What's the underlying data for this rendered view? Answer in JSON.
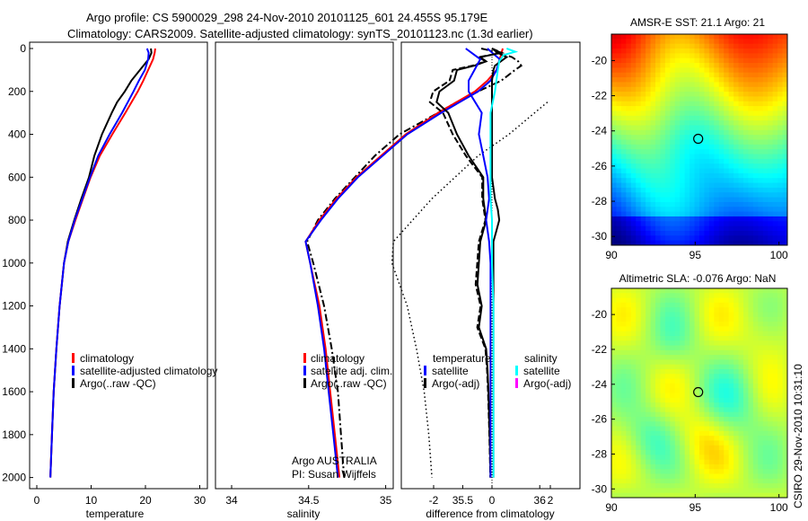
{
  "header": {
    "line1": "Argo profile: CS 5900029_298 24-Nov-2010 20101125_601 24.455S 95.179E",
    "line2": "Climatology: CARS2009. Satellite-adjusted climatology: synTS_20101123.nc (1.3d earlier)"
  },
  "side_stamp": "CSIRO 29-Nov-2010 10:31:10",
  "colors": {
    "climatology": "#ff0000",
    "satellite": "#0000ff",
    "argo": "#000000",
    "sal_satellite": "#00ffff",
    "sal_argo": "#ff00ff"
  },
  "chart_data": [
    {
      "id": "temperature",
      "type": "line",
      "xlabel": "temperature",
      "ylabel": "",
      "xlim": [
        -3,
        32
      ],
      "ylim": [
        2050,
        0
      ],
      "x_ticks": [
        0,
        10,
        20,
        30
      ],
      "y_ticks": [
        0,
        200,
        400,
        600,
        800,
        1000,
        1200,
        1400,
        1600,
        1800,
        2000
      ],
      "legend": [
        "climatology",
        "satellite-adjusted climatology",
        "Argo(..raw -QC)"
      ],
      "series": [
        {
          "name": "climatology",
          "depth": [
            0,
            20,
            50,
            100,
            150,
            200,
            300,
            400,
            500,
            600,
            700,
            800,
            900,
            1000,
            1200,
            1400,
            1600,
            1800,
            2000
          ],
          "values": [
            21.8,
            21.7,
            21.4,
            20.5,
            19.6,
            18.6,
            16.3,
            13.9,
            11.6,
            9.9,
            8.5,
            7.1,
            5.8,
            5.0,
            4.2,
            3.6,
            3.1,
            2.8,
            2.5
          ]
        },
        {
          "name": "satellite-adjusted climatology",
          "depth": [
            0,
            20,
            50,
            100,
            150,
            200,
            300,
            400,
            500,
            600,
            700,
            800,
            900,
            1000,
            1200,
            1400,
            1600,
            1800,
            2000
          ],
          "values": [
            20.3,
            20.6,
            20.5,
            19.9,
            18.8,
            17.8,
            15.7,
            13.4,
            11.3,
            9.8,
            8.4,
            7.0,
            5.8,
            5.0,
            4.2,
            3.6,
            3.1,
            2.8,
            2.5
          ]
        },
        {
          "name": "Argo(..raw -QC)",
          "depth": [
            0,
            20,
            50,
            100,
            150,
            200,
            250,
            300,
            400,
            500,
            600,
            700,
            800,
            900,
            1000,
            1200,
            1400,
            1600,
            1800,
            2000
          ],
          "values": [
            21.0,
            21.1,
            20.6,
            19.0,
            17.4,
            16.2,
            14.8,
            13.8,
            12.0,
            10.6,
            9.6,
            8.2,
            6.9,
            5.7,
            5.0,
            4.2,
            3.6,
            3.1,
            2.8,
            2.5
          ]
        }
      ]
    },
    {
      "id": "salinity",
      "type": "line",
      "xlabel": "salinity",
      "ylabel": "",
      "xlim": [
        33.85,
        36.05
      ],
      "ylim": [
        2050,
        0
      ],
      "x_ticks": [
        34,
        34.5,
        35,
        35.5,
        36
      ],
      "legend": [
        "climatology",
        "satellite adj. clim.",
        "Argo(..raw -QC)"
      ],
      "annotation": [
        "Argo AUSTRALIA",
        "PI: Susan Wijffels"
      ],
      "series": [
        {
          "name": "climatology",
          "depth": [
            0,
            25,
            50,
            100,
            150,
            200,
            300,
            400,
            500,
            600,
            700,
            800,
            900,
            1000,
            1200,
            1400,
            1600,
            1800,
            2000
          ],
          "values": [
            35.76,
            35.75,
            35.74,
            35.72,
            35.66,
            35.58,
            35.34,
            35.13,
            34.97,
            34.81,
            34.68,
            34.57,
            34.48,
            34.51,
            34.57,
            34.61,
            34.64,
            34.67,
            34.7
          ]
        },
        {
          "name": "satellite adj. clim.",
          "depth": [
            0,
            25,
            50,
            100,
            150,
            200,
            300,
            400,
            500,
            600,
            700,
            800,
            900,
            1000,
            1200,
            1400,
            1600,
            1800,
            2000
          ],
          "values": [
            35.66,
            35.7,
            35.74,
            35.72,
            35.68,
            35.6,
            35.36,
            35.14,
            34.98,
            34.82,
            34.69,
            34.58,
            34.48,
            34.51,
            34.56,
            34.6,
            34.63,
            34.66,
            34.69
          ]
        },
        {
          "name": "Argo(..raw -QC)",
          "depth": [
            0,
            20,
            40,
            60,
            80,
            100,
            150,
            200,
            250,
            300,
            400,
            500,
            600,
            700,
            800,
            900,
            1000,
            1200,
            1400,
            1600,
            1800,
            2000
          ],
          "values": [
            35.62,
            35.74,
            35.82,
            35.86,
            35.88,
            35.84,
            35.75,
            35.6,
            35.46,
            35.34,
            35.09,
            34.93,
            34.8,
            34.67,
            34.56,
            34.49,
            34.53,
            34.6,
            34.65,
            34.69,
            34.71,
            34.73
          ]
        },
        {
          "name": "",
          "depth": [
            250,
            400,
            500,
            700,
            900,
            1000,
            1200,
            1400,
            1600,
            1800,
            2000
          ],
          "values": [
            36.05,
            35.8,
            35.6,
            35.3,
            35.05,
            35.04,
            35.14,
            35.2,
            35.25,
            35.28,
            35.3
          ]
        }
      ]
    },
    {
      "id": "difference",
      "type": "line",
      "xlabel": "difference from climatology",
      "ylabel": "",
      "xlim": [
        -3.1,
        3.2
      ],
      "ylim": [
        2050,
        0
      ],
      "x_ticks": [
        -2,
        0,
        2
      ],
      "legend_temperature": [
        "temperature",
        "satellite",
        "Argo(-adj)"
      ],
      "legend_salinity": [
        "salinity",
        "satellite",
        "Argo(-adj)"
      ],
      "series": [
        {
          "name": "temperature satellite",
          "depth": [
            0,
            20,
            50,
            100,
            150,
            200,
            300,
            400,
            500,
            600,
            700,
            800,
            900,
            1000,
            1200,
            1400,
            1600,
            1800,
            2000
          ],
          "values": [
            -0.9,
            -0.7,
            -0.4,
            -0.6,
            -0.8,
            -0.8,
            -0.35,
            -0.45,
            -0.3,
            -0.15,
            -0.1,
            -0.2,
            -0.1,
            -0.05,
            -0.05,
            -0.05,
            -0.05,
            -0.05,
            -0.05
          ]
        },
        {
          "name": "temperature Argo(-adj)",
          "depth": [
            0,
            20,
            40,
            60,
            80,
            100,
            150,
            200,
            250,
            300,
            400,
            500,
            600,
            700,
            800,
            900,
            1000,
            1100,
            1200,
            1300,
            1400,
            1500,
            1600,
            1800,
            2000
          ],
          "values": [
            0.0,
            0.3,
            -0.4,
            -0.2,
            -0.6,
            -1.2,
            -1.3,
            -1.8,
            -1.9,
            -1.5,
            -1.2,
            -0.8,
            -0.3,
            -0.3,
            -0.2,
            -0.4,
            -0.45,
            -0.5,
            -0.35,
            -0.45,
            -0.2,
            -0.15,
            -0.12,
            -0.08,
            -0.05
          ]
        },
        {
          "name": "salinity satellite",
          "depth": [
            0,
            15,
            30,
            60,
            100,
            150,
            200,
            300,
            400,
            500,
            600,
            700,
            800,
            1000,
            1200,
            1400,
            1600,
            1800,
            2000
          ],
          "values": [
            0.5,
            0.8,
            0.4,
            0.25,
            0.2,
            0.15,
            0.1,
            -0.05,
            -0.05,
            -0.05,
            -0.05,
            -0.05,
            0.0,
            0.0,
            0.05,
            0.05,
            0.05,
            0.05,
            0.05
          ]
        },
        {
          "name": "salinity Argo(-adj)",
          "depth": [
            0,
            20,
            40,
            60,
            80,
            100,
            150,
            200,
            300,
            400,
            500,
            600,
            700,
            750,
            800,
            850,
            900,
            1000,
            1200,
            1400,
            1600,
            1800,
            2000
          ],
          "values": [
            0.0,
            0.2,
            0.5,
            0.3,
            0.1,
            0.05,
            0.0,
            0.0,
            0.0,
            0.0,
            0.0,
            0.0,
            0.1,
            0.2,
            0.25,
            0.15,
            0.05,
            0.05,
            0.05,
            0.05,
            0.05,
            0.05,
            0.05
          ]
        }
      ]
    },
    {
      "id": "sst_map",
      "type": "heatmap",
      "title": "AMSR-E SST: 21.1 Argo: 21",
      "xlim": [
        90,
        100.5
      ],
      "ylim": [
        -30.5,
        -18.5
      ],
      "x_ticks": [
        90,
        95,
        100
      ],
      "y_ticks": [
        -20,
        -22,
        -24,
        -26,
        -28,
        -30
      ],
      "marker": {
        "lon": 95.18,
        "lat": -24.45
      }
    },
    {
      "id": "sla_map",
      "type": "heatmap",
      "title": "Altimetric SLA: -0.076 Argo: NaN",
      "xlim": [
        90,
        100.5
      ],
      "ylim": [
        -30.5,
        -18.5
      ],
      "x_ticks": [
        90,
        95,
        100
      ],
      "y_ticks": [
        -20,
        -22,
        -24,
        -26,
        -28,
        -30
      ],
      "marker": {
        "lon": 95.18,
        "lat": -24.45
      }
    }
  ]
}
